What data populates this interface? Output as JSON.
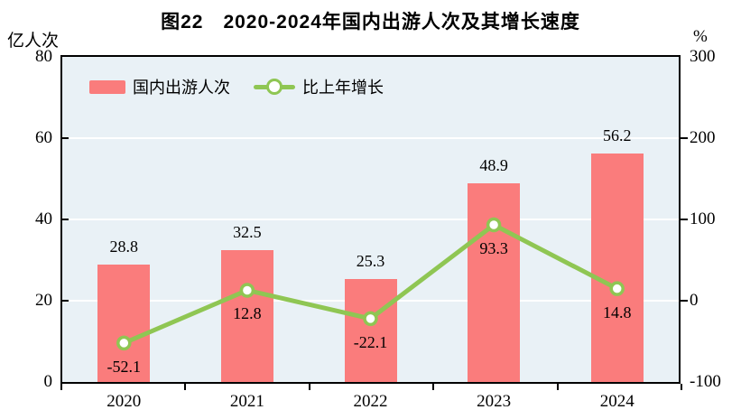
{
  "title": "图22　2020-2024年国内出游人次及其增长速度",
  "chart_data": {
    "type": "combo-bar-line",
    "categories": [
      "2020",
      "2021",
      "2022",
      "2023",
      "2024"
    ],
    "series": [
      {
        "name": "国内出游人次",
        "type": "bar",
        "axis": "left",
        "color": "#fa7c7c",
        "values": [
          28.8,
          32.5,
          25.3,
          48.9,
          56.2
        ],
        "labels": [
          "28.8",
          "32.5",
          "25.3",
          "48.9",
          "56.2"
        ]
      },
      {
        "name": "比上年增长",
        "type": "line",
        "axis": "right",
        "color": "#8fc653",
        "marker": "white-circle",
        "values": [
          -52.1,
          12.8,
          -22.1,
          93.3,
          14.8
        ],
        "labels": [
          "-52.1",
          "12.8",
          "-22.1",
          "93.3",
          "14.8"
        ]
      }
    ],
    "left_axis": {
      "unit": "亿人次",
      "min": 0,
      "max": 80,
      "ticks": [
        0,
        20,
        40,
        60,
        80
      ]
    },
    "right_axis": {
      "unit": "%",
      "min": -100,
      "max": 300,
      "ticks": [
        -100,
        0,
        100,
        200,
        300
      ]
    },
    "colors": {
      "plot_bg": "#e9f1f6",
      "gridline": "#ffffff",
      "axis": "#000000",
      "text": "#000000"
    },
    "grid": "horizontal",
    "legend_position": "top-left-inside"
  }
}
